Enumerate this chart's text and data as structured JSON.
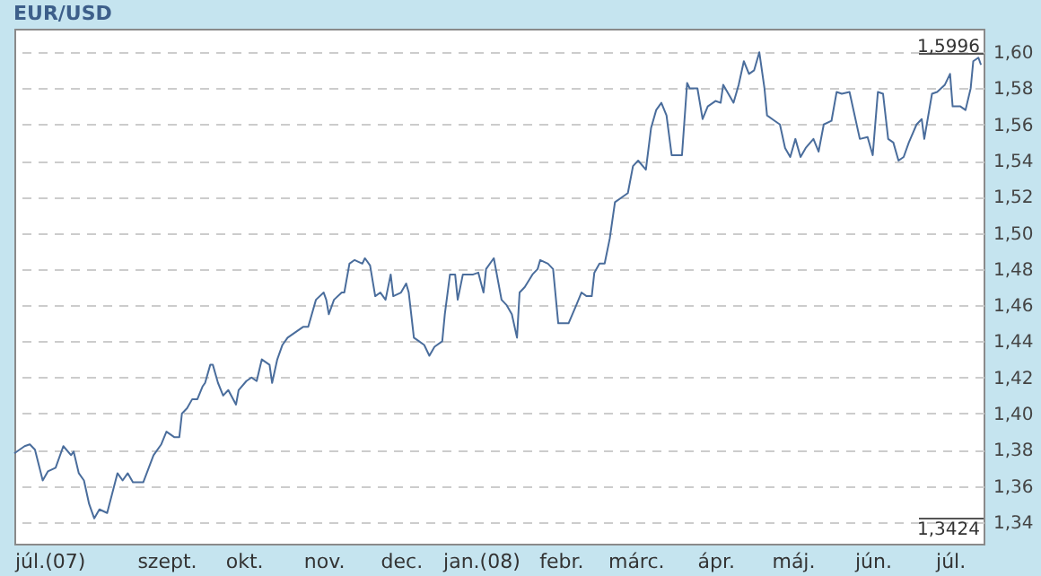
{
  "chart_data": {
    "type": "line",
    "title": "EUR/USD",
    "grid": "y",
    "xlim": [
      "2007-07-04",
      "2008-07-14"
    ],
    "xticks": [
      {
        "value": "2007-07-04",
        "label": "júl.(07)"
      },
      {
        "value": "2007-09-01",
        "label": "szept."
      },
      {
        "value": "2007-10-01",
        "label": "okt."
      },
      {
        "value": "2007-11-01",
        "label": "nov."
      },
      {
        "value": "2007-12-01",
        "label": "dec."
      },
      {
        "value": "2008-01-01",
        "label": "jan.(08)"
      },
      {
        "value": "2008-02-01",
        "label": "febr."
      },
      {
        "value": "2008-03-01",
        "label": "márc."
      },
      {
        "value": "2008-04-01",
        "label": "ápr."
      },
      {
        "value": "2008-05-01",
        "label": "máj."
      },
      {
        "value": "2008-06-01",
        "label": "jún."
      },
      {
        "value": "2008-07-01",
        "label": "júl."
      }
    ],
    "ylim": [
      1.328,
      1.613
    ],
    "yticks": [
      {
        "value": 1.34,
        "label": "1,34"
      },
      {
        "value": 1.36,
        "label": "1,36"
      },
      {
        "value": 1.38,
        "label": "1,38"
      },
      {
        "value": 1.4,
        "label": "1,40"
      },
      {
        "value": 1.42,
        "label": "1,42"
      },
      {
        "value": 1.44,
        "label": "1,44"
      },
      {
        "value": 1.46,
        "label": "1,46"
      },
      {
        "value": 1.48,
        "label": "1,48"
      },
      {
        "value": 1.5,
        "label": "1,50"
      },
      {
        "value": 1.52,
        "label": "1,52"
      },
      {
        "value": 1.54,
        "label": "1,54"
      },
      {
        "value": 1.56,
        "label": "1,56"
      },
      {
        "value": 1.58,
        "label": "1,58"
      },
      {
        "value": 1.6,
        "label": "1,60"
      }
    ],
    "annotations": [
      "1,5996",
      "1,3424"
    ],
    "x": [
      "2007-07-04",
      "2007-07-08",
      "2007-07-10",
      "2007-07-12",
      "2007-07-15",
      "2007-07-17",
      "2007-07-20",
      "2007-07-23",
      "2007-07-26",
      "2007-07-27",
      "2007-07-29",
      "2007-07-31",
      "2007-08-02",
      "2007-08-04",
      "2007-08-06",
      "2007-08-09",
      "2007-08-13",
      "2007-08-15",
      "2007-08-17",
      "2007-08-19",
      "2007-08-23",
      "2007-08-27",
      "2007-08-30",
      "2007-09-01",
      "2007-09-04",
      "2007-09-06",
      "2007-09-07",
      "2007-09-09",
      "2007-09-11",
      "2007-09-13",
      "2007-09-15",
      "2007-09-16",
      "2007-09-18",
      "2007-09-19",
      "2007-09-21",
      "2007-09-23",
      "2007-09-25",
      "2007-09-28",
      "2007-09-29",
      "2007-10-02",
      "2007-10-04",
      "2007-10-06",
      "2007-10-08",
      "2007-10-11",
      "2007-10-12",
      "2007-10-14",
      "2007-10-16",
      "2007-10-18",
      "2007-10-21",
      "2007-10-24",
      "2007-10-26",
      "2007-10-27",
      "2007-10-29",
      "2007-11-01",
      "2007-11-02",
      "2007-11-03",
      "2007-11-05",
      "2007-11-08",
      "2007-11-09",
      "2007-11-11",
      "2007-11-13",
      "2007-11-16",
      "2007-11-17",
      "2007-11-19",
      "2007-11-21",
      "2007-11-23",
      "2007-11-25",
      "2007-11-27",
      "2007-11-28",
      "2007-12-01",
      "2007-12-03",
      "2007-12-04",
      "2007-12-06",
      "2007-12-08",
      "2007-12-10",
      "2007-12-12",
      "2007-12-14",
      "2007-12-17",
      "2007-12-18",
      "2007-12-20",
      "2007-12-22",
      "2007-12-23",
      "2007-12-25",
      "2007-12-29",
      "2007-12-31",
      "2008-01-02",
      "2008-01-03",
      "2008-01-06",
      "2008-01-09",
      "2008-01-11",
      "2008-01-13",
      "2008-01-15",
      "2008-01-16",
      "2008-01-18",
      "2008-01-21",
      "2008-01-23",
      "2008-01-24",
      "2008-01-27",
      "2008-01-29",
      "2008-01-31",
      "2008-02-04",
      "2008-02-07",
      "2008-02-09",
      "2008-02-11",
      "2008-02-13",
      "2008-02-14",
      "2008-02-16",
      "2008-02-18",
      "2008-02-20",
      "2008-02-22",
      "2008-02-25",
      "2008-02-27",
      "2008-02-29",
      "2008-03-02",
      "2008-03-05",
      "2008-03-07",
      "2008-03-09",
      "2008-03-11",
      "2008-03-13",
      "2008-03-15",
      "2008-03-19",
      "2008-03-21",
      "2008-03-22",
      "2008-03-25",
      "2008-03-27",
      "2008-03-29",
      "2008-04-01",
      "2008-04-03",
      "2008-04-04",
      "2008-04-06",
      "2008-04-08",
      "2008-04-10",
      "2008-04-12",
      "2008-04-14",
      "2008-04-16",
      "2008-04-18",
      "2008-04-20",
      "2008-04-21",
      "2008-04-24",
      "2008-04-26",
      "2008-04-28",
      "2008-04-30",
      "2008-05-02",
      "2008-05-04",
      "2008-05-06",
      "2008-05-09",
      "2008-05-11",
      "2008-05-13",
      "2008-05-16",
      "2008-05-18",
      "2008-05-20",
      "2008-05-23",
      "2008-05-25",
      "2008-05-27",
      "2008-05-30",
      "2008-06-01",
      "2008-06-03",
      "2008-06-05",
      "2008-06-07",
      "2008-06-09",
      "2008-06-11",
      "2008-06-13",
      "2008-06-15",
      "2008-06-18",
      "2008-06-20",
      "2008-06-21",
      "2008-06-24",
      "2008-06-26",
      "2008-06-29",
      "2008-07-01",
      "2008-07-02",
      "2008-07-05",
      "2008-07-07",
      "2008-07-09",
      "2008-07-10",
      "2008-07-12",
      "2008-07-13"
    ],
    "series": [
      {
        "color": "#4a6d9c",
        "values": [
          1.378,
          1.382,
          1.383,
          1.38,
          1.363,
          1.368,
          1.37,
          1.382,
          1.377,
          1.379,
          1.367,
          1.363,
          1.35,
          1.342,
          1.347,
          1.345,
          1.367,
          1.363,
          1.367,
          1.362,
          1.362,
          1.377,
          1.383,
          1.39,
          1.387,
          1.387,
          1.4,
          1.403,
          1.408,
          1.408,
          1.415,
          1.417,
          1.427,
          1.427,
          1.417,
          1.41,
          1.413,
          1.405,
          1.413,
          1.418,
          1.42,
          1.418,
          1.43,
          1.427,
          1.417,
          1.43,
          1.438,
          1.442,
          1.445,
          1.448,
          1.448,
          1.453,
          1.463,
          1.467,
          1.463,
          1.455,
          1.463,
          1.467,
          1.467,
          1.483,
          1.485,
          1.483,
          1.486,
          1.482,
          1.465,
          1.467,
          1.463,
          1.477,
          1.465,
          1.467,
          1.472,
          1.467,
          1.442,
          1.44,
          1.438,
          1.432,
          1.437,
          1.44,
          1.455,
          1.477,
          1.477,
          1.463,
          1.477,
          1.477,
          1.478,
          1.467,
          1.48,
          1.486,
          1.463,
          1.46,
          1.455,
          1.442,
          1.467,
          1.47,
          1.477,
          1.48,
          1.485,
          1.483,
          1.48,
          1.45,
          1.45,
          1.46,
          1.467,
          1.465,
          1.465,
          1.478,
          1.483,
          1.483,
          1.497,
          1.517,
          1.52,
          1.522,
          1.537,
          1.54,
          1.535,
          1.558,
          1.568,
          1.572,
          1.565,
          1.543,
          1.543,
          1.583,
          1.58,
          1.58,
          1.563,
          1.57,
          1.573,
          1.572,
          1.582,
          1.577,
          1.572,
          1.582,
          1.595,
          1.588,
          1.59,
          1.6,
          1.58,
          1.565,
          1.562,
          1.56,
          1.547,
          1.542,
          1.552,
          1.542,
          1.547,
          1.552,
          1.545,
          1.56,
          1.562,
          1.578,
          1.577,
          1.578,
          1.565,
          1.552,
          1.553,
          1.543,
          1.578,
          1.577,
          1.552,
          1.55,
          1.54,
          1.542,
          1.55,
          1.56,
          1.563,
          1.552,
          1.577,
          1.578,
          1.582,
          1.588,
          1.57,
          1.57,
          1.568,
          1.58,
          1.595,
          1.597,
          1.593
        ]
      }
    ]
  }
}
